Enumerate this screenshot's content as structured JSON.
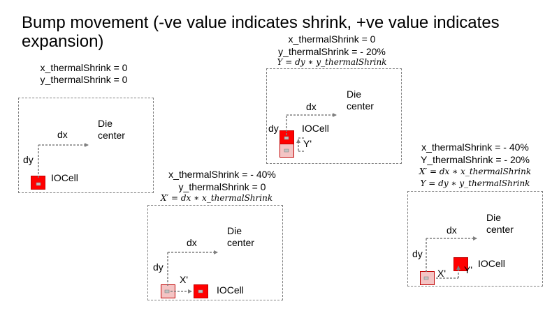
{
  "title": "Bump movement (-ve value indicates shrink, +ve value indicates expansion)",
  "panels": [
    {
      "id": "baseline",
      "x_label": "x_thermalShrink = 0",
      "y_label": "y_thermalShrink = 0",
      "dx": "dx",
      "dy": "dy",
      "die_center": "Die center",
      "iocell": "IOCell"
    },
    {
      "id": "x-shrink",
      "x_label": "x_thermalShrink = - 40%",
      "y_label": "y_thermalShrink = 0",
      "formula": "X′ = dx ∗ x_thermalShrink",
      "dx": "dx",
      "dy": "dy",
      "die_center": "Die center",
      "iocell": "IOCell",
      "x_prime": "X'"
    },
    {
      "id": "y-shrink",
      "x_label": "x_thermalShrink = 0",
      "y_label": "y_thermalShrink = - 20%",
      "formula": "Y = dy ∗ y_thermalShrink",
      "dx": "dx",
      "dy": "dy",
      "die_center": "Die center",
      "iocell": "IOCell",
      "y_prime": "Y'"
    },
    {
      "id": "xy-shrink",
      "x_label": "x_thermalShrink = - 40%",
      "y_label": "Y_thermalShrink = - 20%",
      "formula_x": "X′ = dx ∗ x_thermalShrink",
      "formula_y": "Y = dy ∗ y_thermalShrink",
      "dx": "dx",
      "dy": "dy",
      "die_center": "Die center",
      "iocell": "IOCell",
      "x_prime": "X'",
      "y_prime": "Y'"
    }
  ],
  "colors": {
    "iocell": "#ff0000",
    "ghost": "#f4c4c4",
    "arrow": "#7f7f7f"
  }
}
